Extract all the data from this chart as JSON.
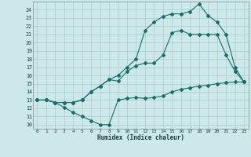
{
  "xlabel": "Humidex (Indice chaleur)",
  "bg_color": "#cce8e8",
  "grid_color": "#aacccc",
  "line_color": "#1a6b6b",
  "xlim": [
    -0.5,
    23.5
  ],
  "ylim": [
    9.5,
    25.0
  ],
  "xticks": [
    0,
    1,
    2,
    3,
    4,
    5,
    6,
    7,
    8,
    9,
    10,
    11,
    12,
    13,
    14,
    15,
    16,
    17,
    18,
    19,
    20,
    21,
    22,
    23
  ],
  "yticks": [
    10,
    11,
    12,
    13,
    14,
    15,
    16,
    17,
    18,
    19,
    20,
    21,
    22,
    23,
    24
  ],
  "line1_x": [
    0,
    1,
    2,
    3,
    4,
    5,
    6,
    7,
    8,
    9,
    10,
    11,
    12,
    13,
    14,
    15,
    16,
    17,
    18,
    19,
    20,
    21,
    22,
    23
  ],
  "line1_y": [
    13.0,
    13.0,
    12.7,
    12.1,
    11.5,
    11.0,
    10.5,
    10.0,
    10.0,
    13.0,
    13.2,
    13.3,
    13.2,
    13.3,
    13.5,
    14.0,
    14.3,
    14.5,
    14.7,
    14.8,
    15.0,
    15.1,
    15.2,
    15.2
  ],
  "line2_x": [
    0,
    1,
    2,
    3,
    4,
    5,
    6,
    7,
    8,
    9,
    10,
    11,
    12,
    13,
    14,
    15,
    16,
    17,
    18,
    19,
    20,
    21,
    22,
    23
  ],
  "line2_y": [
    13.0,
    13.0,
    12.7,
    12.7,
    12.7,
    13.0,
    14.0,
    14.7,
    15.5,
    15.3,
    16.5,
    17.2,
    17.5,
    17.5,
    18.5,
    21.2,
    21.5,
    21.0,
    21.0,
    21.0,
    21.0,
    18.5,
    16.5,
    15.2
  ],
  "line3_x": [
    0,
    1,
    2,
    3,
    4,
    5,
    6,
    7,
    8,
    9,
    10,
    11,
    12,
    13,
    14,
    15,
    16,
    17,
    18,
    19,
    20,
    21,
    22,
    23
  ],
  "line3_y": [
    13.0,
    13.0,
    12.7,
    12.7,
    12.7,
    13.0,
    14.0,
    14.7,
    15.5,
    16.0,
    17.0,
    18.0,
    21.5,
    22.5,
    23.2,
    23.5,
    23.5,
    23.8,
    24.7,
    23.3,
    22.5,
    21.0,
    17.0,
    15.2
  ]
}
